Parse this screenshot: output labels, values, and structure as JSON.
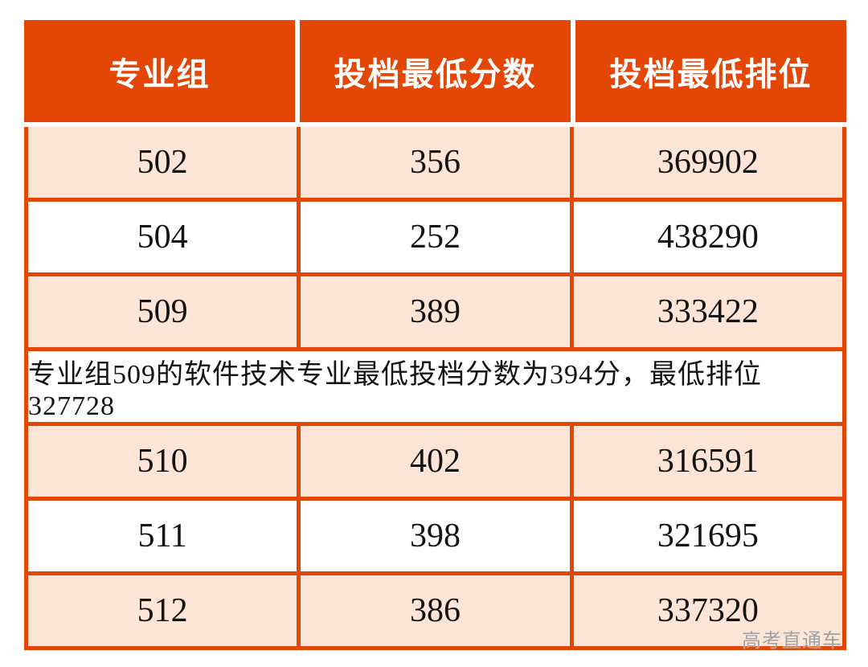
{
  "table": {
    "headers": [
      "专业组",
      "投档最低分数",
      "投档最低排位"
    ],
    "rows": [
      {
        "cells": [
          "502",
          "356",
          "369902"
        ],
        "shaded": true
      },
      {
        "cells": [
          "504",
          "252",
          "438290"
        ],
        "shaded": false
      },
      {
        "cells": [
          "509",
          "389",
          "333422"
        ],
        "shaded": true
      },
      {
        "note": "专业组509的软件技术专业最低投档分数为394分，最低排位327728",
        "shaded": false
      },
      {
        "cells": [
          "510",
          "402",
          "316591"
        ],
        "shaded": true
      },
      {
        "cells": [
          "511",
          "398",
          "321695"
        ],
        "shaded": false
      },
      {
        "cells": [
          "512",
          "386",
          "337320"
        ],
        "shaded": true
      }
    ]
  },
  "watermark": "高考直通车",
  "colors": {
    "header_bg": "#e44605",
    "border": "#e44605",
    "row_alt_bg": "#fce4d6",
    "row_bg": "#ffffff",
    "header_text": "#ffffff",
    "cell_text": "#141414",
    "watermark": "#a0a0a0"
  }
}
